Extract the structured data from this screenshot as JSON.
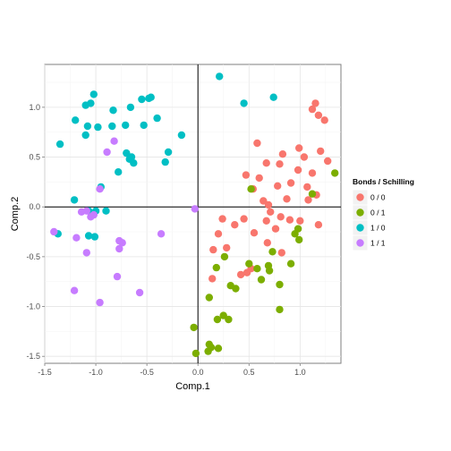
{
  "chart_data": {
    "type": "scatter",
    "title": "",
    "xlabel": "Comp.1",
    "ylabel": "Comp.2",
    "xlim": [
      -1.5,
      1.4
    ],
    "ylim": [
      -1.57,
      1.43
    ],
    "x_ticks": [
      -1.5,
      -1.0,
      -0.5,
      0.0,
      0.5,
      1.0
    ],
    "x_tick_labels": [
      "-1.5",
      "-1.0",
      "-0.5",
      "0.0",
      "0.5",
      "1.0"
    ],
    "y_ticks": [
      -1.5,
      -1.0,
      -0.5,
      0.0,
      0.5,
      1.0
    ],
    "y_tick_labels": [
      "-1.5",
      "-1.0",
      "-0.5",
      "0.0",
      "0.5",
      "1.0"
    ],
    "grid": true,
    "reference_lines": {
      "x": 0,
      "y": 0
    },
    "legend": {
      "title": "Bonds / Schilling",
      "position": "right"
    },
    "series": [
      {
        "name": "0 / 0",
        "color": "#F8766D",
        "points": [
          [
            1.15,
            1.04
          ],
          [
            1.12,
            0.98
          ],
          [
            1.18,
            0.92
          ],
          [
            1.24,
            0.87
          ],
          [
            0.58,
            0.64
          ],
          [
            0.99,
            0.59
          ],
          [
            0.83,
            0.53
          ],
          [
            1.2,
            0.56
          ],
          [
            1.27,
            0.46
          ],
          [
            0.67,
            0.44
          ],
          [
            1.04,
            0.5
          ],
          [
            0.8,
            0.43
          ],
          [
            0.98,
            0.37
          ],
          [
            1.12,
            0.34
          ],
          [
            0.47,
            0.32
          ],
          [
            0.6,
            0.29
          ],
          [
            0.78,
            0.21
          ],
          [
            0.91,
            0.24
          ],
          [
            0.54,
            0.18
          ],
          [
            1.07,
            0.2
          ],
          [
            1.16,
            0.12
          ],
          [
            0.64,
            0.06
          ],
          [
            0.69,
            0.02
          ],
          [
            0.87,
            0.08
          ],
          [
            1.08,
            0.07
          ],
          [
            0.71,
            -0.05
          ],
          [
            0.81,
            -0.1
          ],
          [
            0.24,
            -0.12
          ],
          [
            0.45,
            -0.12
          ],
          [
            0.36,
            -0.18
          ],
          [
            0.67,
            -0.14
          ],
          [
            0.9,
            -0.13
          ],
          [
            1.0,
            -0.14
          ],
          [
            1.18,
            -0.18
          ],
          [
            0.76,
            -0.22
          ],
          [
            0.55,
            -0.26
          ],
          [
            0.2,
            -0.27
          ],
          [
            0.68,
            -0.36
          ],
          [
            0.15,
            -0.43
          ],
          [
            0.28,
            -0.41
          ],
          [
            0.82,
            -0.46
          ],
          [
            0.48,
            -0.66
          ],
          [
            0.42,
            -0.68
          ],
          [
            0.52,
            -0.62
          ],
          [
            0.14,
            -0.72
          ]
        ]
      },
      {
        "name": "0 / 1",
        "color": "#7CAE00",
        "points": [
          [
            1.34,
            0.34
          ],
          [
            1.12,
            0.13
          ],
          [
            0.52,
            0.18
          ],
          [
            0.98,
            -0.22
          ],
          [
            0.99,
            -0.33
          ],
          [
            0.95,
            -0.27
          ],
          [
            0.73,
            -0.45
          ],
          [
            0.26,
            -0.5
          ],
          [
            0.5,
            -0.57
          ],
          [
            0.7,
            -0.64
          ],
          [
            0.18,
            -0.61
          ],
          [
            0.58,
            -0.62
          ],
          [
            0.69,
            -0.59
          ],
          [
            0.91,
            -0.57
          ],
          [
            0.32,
            -0.79
          ],
          [
            0.37,
            -0.82
          ],
          [
            0.62,
            -0.73
          ],
          [
            0.8,
            -0.78
          ],
          [
            0.11,
            -0.91
          ],
          [
            0.8,
            -1.03
          ],
          [
            0.25,
            -1.09
          ],
          [
            0.19,
            -1.13
          ],
          [
            0.3,
            -1.13
          ],
          [
            -0.04,
            -1.21
          ],
          [
            0.11,
            -1.38
          ],
          [
            0.13,
            -1.41
          ],
          [
            0.2,
            -1.42
          ],
          [
            0.1,
            -1.45
          ],
          [
            -0.02,
            -1.47
          ]
        ]
      },
      {
        "name": "1 / 0",
        "color": "#00BFC4",
        "points": [
          [
            -1.02,
            1.13
          ],
          [
            -1.1,
            1.02
          ],
          [
            -1.05,
            1.04
          ],
          [
            0.21,
            1.31
          ],
          [
            0.74,
            1.1
          ],
          [
            -0.55,
            1.08
          ],
          [
            -0.48,
            1.09
          ],
          [
            -0.46,
            1.1
          ],
          [
            0.45,
            1.04
          ],
          [
            -0.66,
            1.0
          ],
          [
            -0.83,
            0.97
          ],
          [
            -0.4,
            0.89
          ],
          [
            -1.2,
            0.87
          ],
          [
            -0.84,
            0.81
          ],
          [
            -0.71,
            0.82
          ],
          [
            -0.53,
            0.82
          ],
          [
            -1.08,
            0.81
          ],
          [
            -0.98,
            0.8
          ],
          [
            -1.1,
            0.72
          ],
          [
            -0.16,
            0.72
          ],
          [
            -1.35,
            0.63
          ],
          [
            -0.7,
            0.54
          ],
          [
            -0.29,
            0.55
          ],
          [
            -0.67,
            0.48
          ],
          [
            -0.65,
            0.5
          ],
          [
            -0.32,
            0.45
          ],
          [
            -0.63,
            0.44
          ],
          [
            -0.78,
            0.35
          ],
          [
            -0.95,
            0.2
          ],
          [
            -1.21,
            0.07
          ],
          [
            -1.07,
            -0.04
          ],
          [
            -1.0,
            -0.04
          ],
          [
            -0.9,
            -0.04
          ],
          [
            -1.37,
            -0.27
          ],
          [
            -1.01,
            -0.3
          ],
          [
            -1.07,
            -0.29
          ]
        ]
      },
      {
        "name": "1 / 1",
        "color": "#C77CFF",
        "points": [
          [
            -0.82,
            0.66
          ],
          [
            -0.89,
            0.55
          ],
          [
            -0.96,
            0.18
          ],
          [
            -0.03,
            -0.02
          ],
          [
            -1.09,
            -0.04
          ],
          [
            -1.02,
            -0.08
          ],
          [
            -1.05,
            -0.1
          ],
          [
            -1.14,
            -0.05
          ],
          [
            -1.41,
            -0.25
          ],
          [
            -0.36,
            -0.27
          ],
          [
            -1.19,
            -0.31
          ],
          [
            -0.77,
            -0.34
          ],
          [
            -0.74,
            -0.36
          ],
          [
            -0.77,
            -0.42
          ],
          [
            -1.09,
            -0.46
          ],
          [
            -0.79,
            -0.7
          ],
          [
            -1.21,
            -0.84
          ],
          [
            -0.57,
            -0.86
          ],
          [
            -0.96,
            -0.96
          ]
        ]
      }
    ]
  }
}
